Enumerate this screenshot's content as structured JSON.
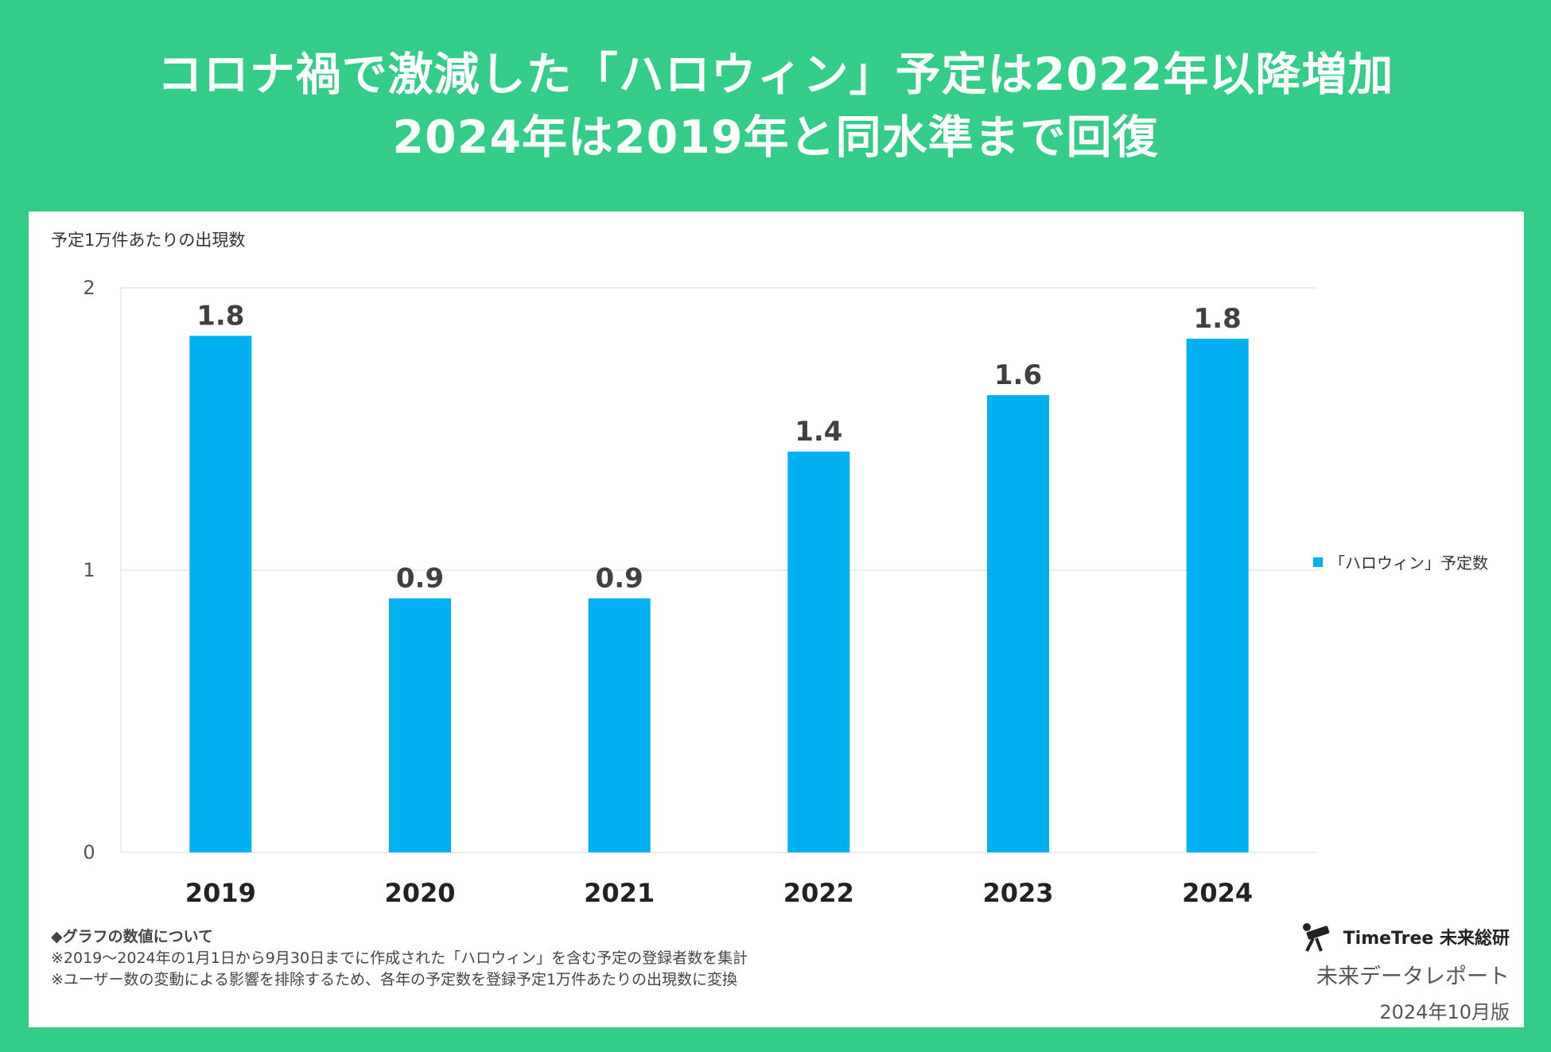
{
  "title": {
    "line1": "コロナ禍で激減した「ハロウィン」予定は2022年以降増加",
    "line2": "2024年は2019年と同水準まで回復"
  },
  "chart_data": {
    "type": "bar",
    "ylabel": "予定1万件あたりの出現数",
    "categories": [
      "2019",
      "2020",
      "2021",
      "2022",
      "2023",
      "2024"
    ],
    "values": [
      1.83,
      0.9,
      0.9,
      1.42,
      1.62,
      1.82
    ],
    "value_labels": [
      "1.8",
      "0.9",
      "0.9",
      "1.4",
      "1.6",
      "1.8"
    ],
    "ylim": [
      0,
      2
    ],
    "yticks": [
      "0",
      "1",
      "2"
    ],
    "series_name": "「ハロウィン」予定数",
    "legend": "right",
    "bar_color": "#00b0f0"
  },
  "notes": {
    "title": "◆グラフの数値について",
    "line1": "※2019～2024年の1月1日から9月30日までに作成された「ハロウィン」を含む予定の登録者数を集計",
    "line2": "※ユーザー数の変動による影響を排除するため、各年の予定数を登録予定1万件あたりの出現数に変換"
  },
  "brand": {
    "logo_text": "TimeTree 未来総研",
    "report": "未来データレポート",
    "edition": "2024年10月版"
  },
  "colors": {
    "background": "#33cc88",
    "accent": "#00b0f0"
  }
}
